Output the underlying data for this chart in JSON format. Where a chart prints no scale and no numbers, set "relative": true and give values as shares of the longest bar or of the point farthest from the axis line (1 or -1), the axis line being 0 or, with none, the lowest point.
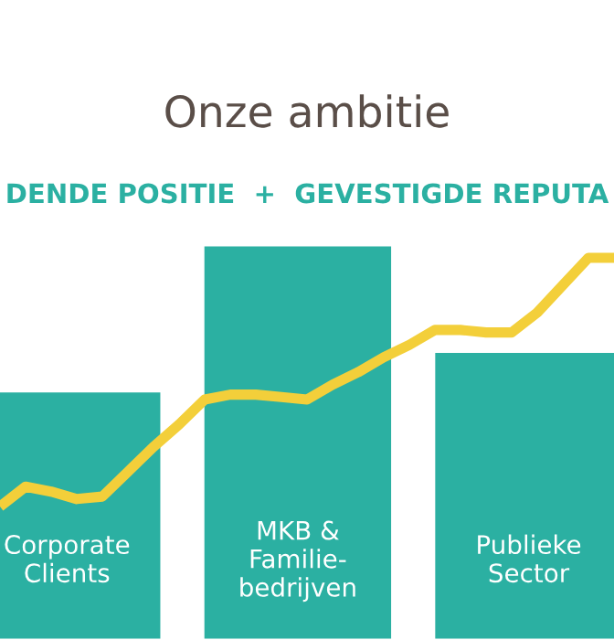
{
  "chart_data": [
    {
      "type": "bar",
      "title": "Onze ambitie",
      "subtitle": "DENDE POSITIE  +  GEVESTIGDE REPUTA",
      "relative": true,
      "categories": [
        "Corporate\nClients",
        "MKB &\nFamilie-\nbedrijven",
        "Publieke\nSector"
      ],
      "series": [
        {
          "color": "#2bb0a2",
          "values": [
            0.63,
            1,
            0.73
          ]
        }
      ]
    },
    {
      "type": "line",
      "relative": true,
      "categories": [
        null,
        null,
        null,
        null,
        null,
        null,
        null,
        null,
        null,
        null,
        null,
        null,
        null,
        null,
        null,
        null,
        null,
        null,
        null,
        null,
        null,
        null,
        null,
        null,
        null
      ],
      "series": [
        {
          "color": "#f3cf3a",
          "values": [
            0,
            0.08,
            0.06,
            0.03,
            0.04,
            0.14,
            0.24,
            0.33,
            0.43,
            0.45,
            0.45,
            0.44,
            0.43,
            0.49,
            0.54,
            0.6,
            0.65,
            0.71,
            0.71,
            0.7,
            0.7,
            0.78,
            0.89,
            1,
            1
          ]
        }
      ]
    }
  ]
}
